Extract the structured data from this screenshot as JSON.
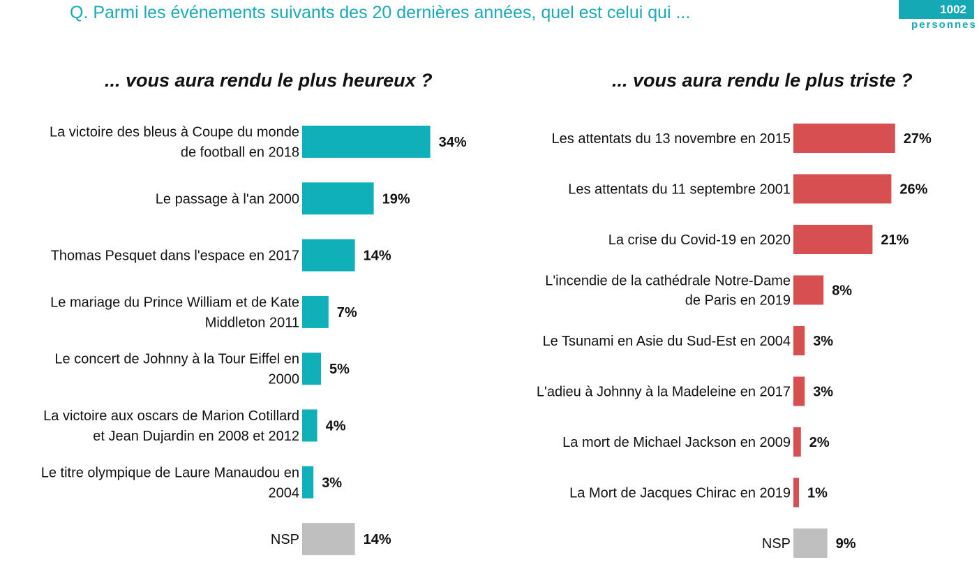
{
  "header": {
    "question": "Q. Parmi les événements suivants des 20 dernières années, quel est celui qui ...",
    "badge_count": "1002",
    "badge_label": "personnes"
  },
  "colors": {
    "happy": "#0fb0b8",
    "sad": "#d84f52",
    "nsp": "#bfbfbf",
    "accent": "#1aa9b6"
  },
  "chart_data": [
    {
      "type": "bar",
      "orientation": "horizontal",
      "title": "... vous aura rendu le plus heureux ?",
      "unit": "%",
      "categories": [
        [
          "La victoire des bleus à Coupe du monde",
          "de football en 2018"
        ],
        [
          "Le passage à l'an 2000"
        ],
        [
          "Thomas Pesquet dans l'espace en 2017"
        ],
        [
          "Le mariage du Prince William et de Kate",
          "Middleton 2011"
        ],
        [
          "Le concert de Johnny à la Tour Eiffel en",
          "2000"
        ],
        [
          "La victoire aux oscars de Marion Cotillard",
          "et Jean Dujardin en 2008 et 2012"
        ],
        [
          "Le titre olympique de Laure Manaudou en",
          "2004"
        ],
        [
          "NSP"
        ]
      ],
      "values": [
        34,
        19,
        14,
        7,
        5,
        4,
        3,
        14
      ],
      "labels": [
        "34%",
        "19%",
        "14%",
        "7%",
        "5%",
        "4%",
        "3%",
        "14%"
      ],
      "grey_categories": [
        "NSP"
      ]
    },
    {
      "type": "bar",
      "orientation": "horizontal",
      "title": "... vous aura rendu le plus triste ?",
      "unit": "%",
      "categories": [
        [
          "Les attentats du 13 novembre en 2015"
        ],
        [
          "Les attentats du 11 septembre 2001"
        ],
        [
          "La crise du Covid-19 en 2020"
        ],
        [
          "L'incendie de la cathédrale Notre-Dame",
          "de Paris en 2019"
        ],
        [
          "Le Tsunami en Asie du Sud-Est en 2004"
        ],
        [
          "L'adieu à Johnny à la Madeleine en 2017"
        ],
        [
          "La mort de Michael Jackson en 2009"
        ],
        [
          "La Mort de Jacques Chirac en 2019"
        ],
        [
          "NSP"
        ]
      ],
      "values": [
        27,
        26,
        21,
        8,
        3,
        3,
        2,
        1,
        9
      ],
      "labels": [
        "27%",
        "26%",
        "21%",
        "8%",
        "3%",
        "3%",
        "2%",
        "1%",
        "9%"
      ],
      "grey_categories": [
        "NSP"
      ]
    }
  ]
}
